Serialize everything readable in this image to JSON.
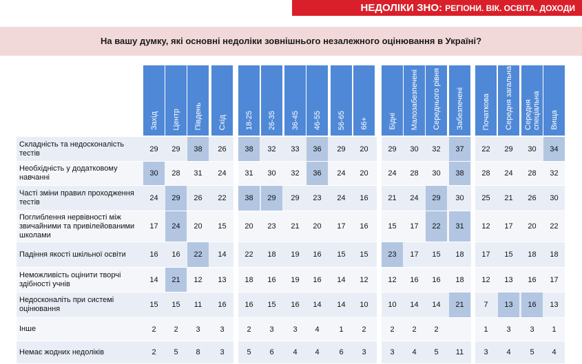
{
  "banner": {
    "main": "НЕДОЛІКИ ЗНО:",
    "sub": "РЕГІОНИ. ВІК. ОСВІТА. ДОХОДИ"
  },
  "question": "На вашу думку, які основні недоліки зовнішнього незалежного оцінювання в Україні?",
  "chart_data": {
    "type": "table",
    "groups": [
      {
        "columns": [
          "Захід",
          "Центр",
          "Південь",
          "Схід"
        ]
      },
      {
        "columns": [
          "18-25",
          "26-35",
          "36-45",
          "46-55",
          "56-65",
          "66+"
        ]
      },
      {
        "columns": [
          "Бідні",
          "Малозабезпечені",
          "Середнього рівня",
          "Забезпечені"
        ]
      },
      {
        "columns": [
          "Початкова",
          "Середня загальна",
          "Середня спеціальна",
          "Вища"
        ]
      }
    ],
    "rows": [
      {
        "label": "Складність та недосконалість тестів",
        "values": [
          "29",
          "29",
          "38",
          "26",
          "38",
          "32",
          "33",
          "36",
          "29",
          "20",
          "29",
          "30",
          "32",
          "37",
          "22",
          "29",
          "30",
          "34"
        ]
      },
      {
        "label": "Необхідність у додатковому навчанні",
        "values": [
          "30",
          "28",
          "31",
          "24",
          "31",
          "30",
          "32",
          "36",
          "24",
          "20",
          "24",
          "28",
          "30",
          "38",
          "28",
          "24",
          "28",
          "32"
        ]
      },
      {
        "label": "Часті зміни правил проходження тестів",
        "values": [
          "24",
          "29",
          "26",
          "22",
          "38",
          "29",
          "29",
          "23",
          "24",
          "16",
          "21",
          "24",
          "29",
          "30",
          "25",
          "21",
          "26",
          "30"
        ]
      },
      {
        "label": "Поглиблення нервівності між звичайними та привілейованими школами",
        "values": [
          "17",
          "24",
          "20",
          "15",
          "20",
          "23",
          "21",
          "20",
          "17",
          "16",
          "15",
          "17",
          "22",
          "31",
          "12",
          "17",
          "20",
          "22"
        ]
      },
      {
        "label": "Падіння якості шкільної освіти",
        "values": [
          "16",
          "16",
          "22",
          "14",
          "22",
          "18",
          "19",
          "16",
          "15",
          "15",
          "23",
          "17",
          "15",
          "18",
          "17",
          "15",
          "18",
          "18"
        ]
      },
      {
        "label": "Неможливість оцінити творчі здібності учнів",
        "values": [
          "14",
          "21",
          "12",
          "13",
          "18",
          "16",
          "19",
          "16",
          "14",
          "12",
          "12",
          "16",
          "16",
          "18",
          "12",
          "13",
          "16",
          "17"
        ]
      },
      {
        "label": "Недосконаліть при системі оцінювання",
        "values": [
          "15",
          "15",
          "11",
          "16",
          "16",
          "15",
          "16",
          "14",
          "14",
          "10",
          "10",
          "14",
          "14",
          "21",
          "7",
          "13",
          "16",
          "13"
        ]
      },
      {
        "label": "Інше",
        "values": [
          "2",
          "2",
          "3",
          "3",
          "2",
          "3",
          "3",
          "4",
          "1",
          "2",
          "2",
          "2",
          "2",
          "",
          "1",
          "3",
          "3",
          "1"
        ]
      },
      {
        "label": "Немає жодних недоліків",
        "values": [
          "2",
          "5",
          "8",
          "3",
          "5",
          "6",
          "4",
          "4",
          "6",
          "3",
          "3",
          "4",
          "5",
          "11",
          "3",
          "4",
          "5",
          "4"
        ]
      }
    ],
    "highlighted": [
      [
        0,
        2
      ],
      [
        0,
        4
      ],
      [
        0,
        7
      ],
      [
        0,
        13
      ],
      [
        0,
        17
      ],
      [
        1,
        0
      ],
      [
        1,
        7
      ],
      [
        1,
        13
      ],
      [
        2,
        1
      ],
      [
        2,
        4
      ],
      [
        2,
        5
      ],
      [
        2,
        12
      ],
      [
        3,
        1
      ],
      [
        3,
        12
      ],
      [
        3,
        13
      ],
      [
        4,
        2
      ],
      [
        4,
        10
      ],
      [
        5,
        1
      ],
      [
        6,
        13
      ],
      [
        6,
        15
      ],
      [
        6,
        16
      ]
    ],
    "colors": {
      "header": "#4f88d6",
      "highlight": "#b2c6e2",
      "band": "#e9eef6",
      "banner": "#d9202a",
      "question_bg": "#f2d9d9"
    }
  }
}
